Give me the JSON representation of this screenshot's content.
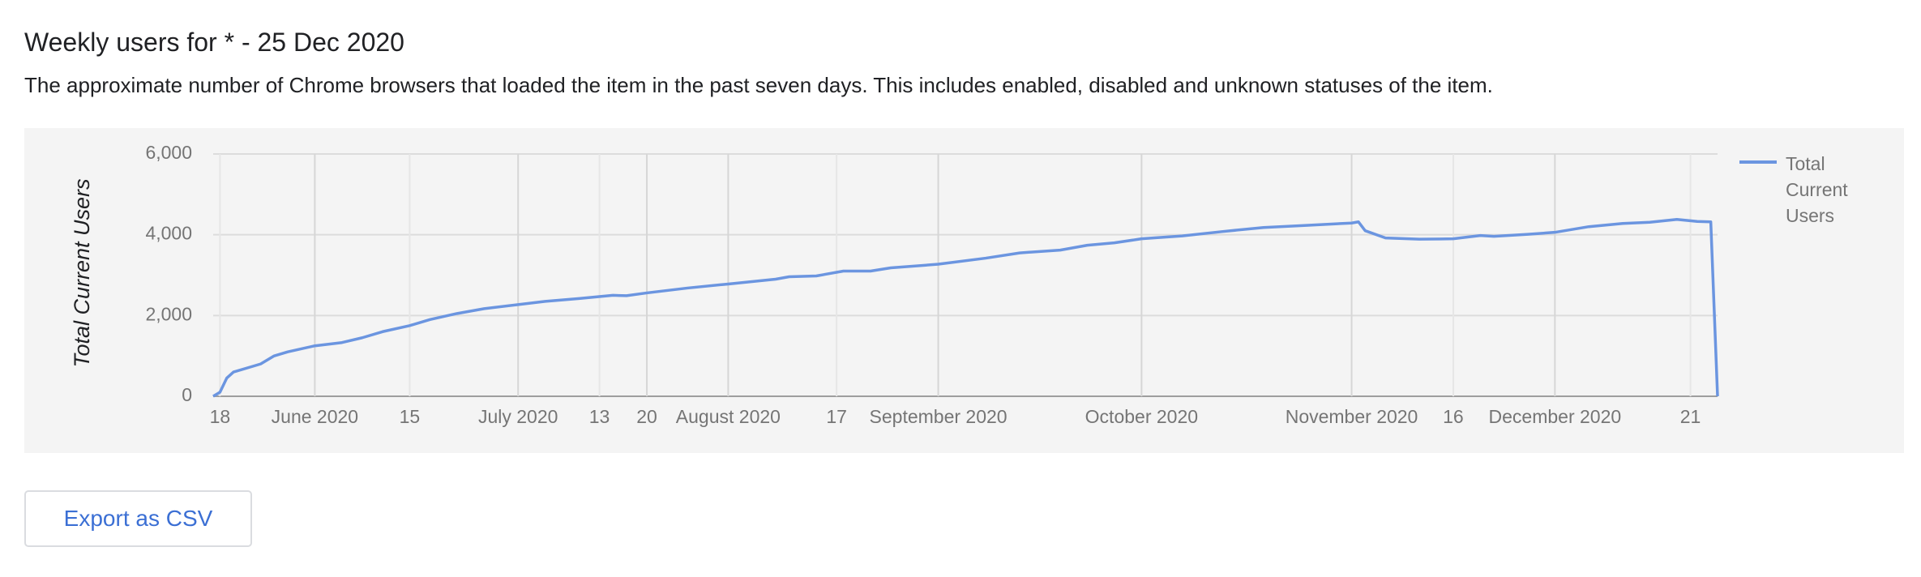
{
  "header": {
    "title": "Weekly users for * - 25 Dec 2020",
    "description": "The approximate number of Chrome browsers that loaded the item in the past seven days. This includes enabled, disabled and unknown statuses of the item."
  },
  "chart_data": {
    "type": "line",
    "ylabel": "Total Current Users",
    "x": [
      "2020-05-17",
      "2020-05-18",
      "2020-05-19",
      "2020-05-20",
      "2020-05-23",
      "2020-05-24",
      "2020-05-26",
      "2020-05-28",
      "2020-06-01",
      "2020-06-05",
      "2020-06-08",
      "2020-06-11",
      "2020-06-15",
      "2020-06-18",
      "2020-06-22",
      "2020-06-26",
      "2020-07-01",
      "2020-07-05",
      "2020-07-10",
      "2020-07-15",
      "2020-07-17",
      "2020-07-20",
      "2020-07-26",
      "2020-08-01",
      "2020-08-08",
      "2020-08-10",
      "2020-08-14",
      "2020-08-18",
      "2020-08-22",
      "2020-08-25",
      "2020-09-01",
      "2020-09-08",
      "2020-09-13",
      "2020-09-19",
      "2020-09-23",
      "2020-09-27",
      "2020-10-01",
      "2020-10-07",
      "2020-10-13",
      "2020-10-19",
      "2020-10-25",
      "2020-11-01",
      "2020-11-02",
      "2020-11-03",
      "2020-11-06",
      "2020-11-11",
      "2020-11-16",
      "2020-11-20",
      "2020-11-22",
      "2020-11-27",
      "2020-12-01",
      "2020-12-06",
      "2020-12-11",
      "2020-12-15",
      "2020-12-19",
      "2020-12-22",
      "2020-12-24",
      "2020-12-25"
    ],
    "series": [
      {
        "name": "Total Current Users",
        "color": "#6b95e0",
        "values": [
          0,
          100,
          450,
          600,
          750,
          800,
          1000,
          1100,
          1250,
          1330,
          1450,
          1600,
          1750,
          1900,
          2050,
          2170,
          2270,
          2350,
          2420,
          2500,
          2490,
          2560,
          2680,
          2780,
          2900,
          2960,
          2980,
          3100,
          3100,
          3180,
          3270,
          3420,
          3550,
          3620,
          3740,
          3800,
          3900,
          3970,
          4080,
          4180,
          4230,
          4290,
          4320,
          4100,
          3920,
          3890,
          3900,
          3980,
          3960,
          4010,
          4060,
          4200,
          4280,
          4310,
          4380,
          4330,
          4320,
          0
        ]
      }
    ],
    "xlim": [
      "2020-05-17",
      "2020-12-25"
    ],
    "xticks": [
      {
        "value": "2020-05-18",
        "label": "18"
      },
      {
        "value": "2020-06-01",
        "label": "June 2020"
      },
      {
        "value": "2020-06-15",
        "label": "15"
      },
      {
        "value": "2020-07-01",
        "label": "July 2020"
      },
      {
        "value": "2020-07-13",
        "label": "13"
      },
      {
        "value": "2020-07-20",
        "label": "20"
      },
      {
        "value": "2020-08-01",
        "label": "August 2020"
      },
      {
        "value": "2020-08-17",
        "label": "17"
      },
      {
        "value": "2020-09-01",
        "label": "September 2020"
      },
      {
        "value": "2020-10-01",
        "label": "October 2020"
      },
      {
        "value": "2020-11-01",
        "label": "November 2020"
      },
      {
        "value": "2020-11-16",
        "label": "16"
      },
      {
        "value": "2020-12-01",
        "label": "December 2020"
      },
      {
        "value": "2020-12-21",
        "label": "21"
      }
    ],
    "ylim": [
      0,
      6000
    ],
    "yticks": [
      0,
      {
        "value": 2000,
        "label": "2,000"
      },
      {
        "value": 4000,
        "label": "4,000"
      },
      {
        "value": 6000,
        "label": "6,000"
      }
    ],
    "grid": true,
    "legend": "right"
  },
  "button": {
    "label": "Export as CSV"
  }
}
